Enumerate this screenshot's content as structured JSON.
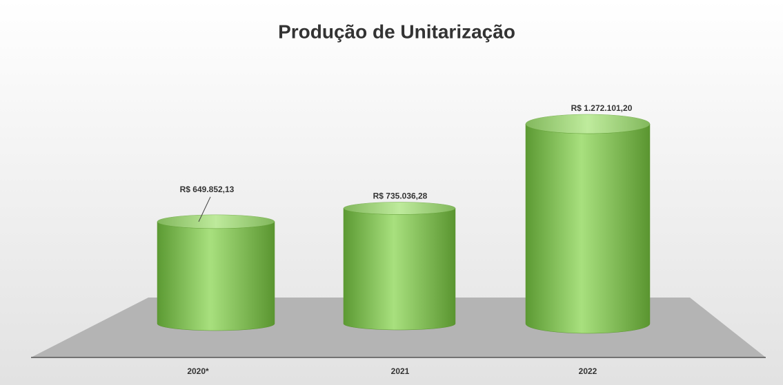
{
  "chart_data": {
    "type": "bar",
    "title": "Produção de Unitarização",
    "categories": [
      "2020*",
      "2021",
      "2022"
    ],
    "values": [
      649852.13,
      735036.28,
      1272101.2
    ],
    "value_labels": [
      "R$ 649.852,13",
      "R$ 735.036,28",
      "R$ 1.272.101,20"
    ],
    "color": "#7ab648"
  }
}
